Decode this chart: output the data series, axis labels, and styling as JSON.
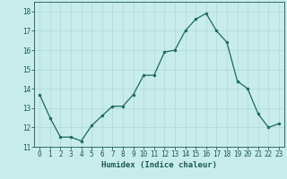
{
  "x": [
    0,
    1,
    2,
    3,
    4,
    5,
    6,
    7,
    8,
    9,
    10,
    11,
    12,
    13,
    14,
    15,
    16,
    17,
    18,
    19,
    20,
    21,
    22,
    23
  ],
  "y": [
    13.7,
    12.5,
    11.5,
    11.5,
    11.3,
    12.1,
    12.6,
    13.1,
    13.1,
    13.7,
    14.7,
    14.7,
    15.9,
    16.0,
    17.0,
    17.6,
    17.9,
    17.0,
    16.4,
    14.4,
    14.0,
    12.7,
    12.0,
    12.2
  ],
  "line_color": "#1a6b5a",
  "marker": "o",
  "marker_size": 2.0,
  "bg_color": "#c8ecec",
  "grid_color": "#aed8d8",
  "xlabel": "Humidex (Indice chaleur)",
  "xlim": [
    -0.5,
    23.5
  ],
  "ylim": [
    11,
    18.5
  ],
  "yticks": [
    11,
    12,
    13,
    14,
    15,
    16,
    17,
    18
  ],
  "xticks": [
    0,
    1,
    2,
    3,
    4,
    5,
    6,
    7,
    8,
    9,
    10,
    11,
    12,
    13,
    14,
    15,
    16,
    17,
    18,
    19,
    20,
    21,
    22,
    23
  ],
  "xtick_labels": [
    "0",
    "1",
    "2",
    "3",
    "4",
    "5",
    "6",
    "7",
    "8",
    "9",
    "10",
    "11",
    "12",
    "13",
    "14",
    "15",
    "16",
    "17",
    "18",
    "19",
    "20",
    "21",
    "22",
    "23"
  ],
  "tick_color": "#1a5a50",
  "font_color": "#1a5a50",
  "tick_fontsize": 5.5,
  "xlabel_fontsize": 6.5,
  "linewidth": 0.9
}
